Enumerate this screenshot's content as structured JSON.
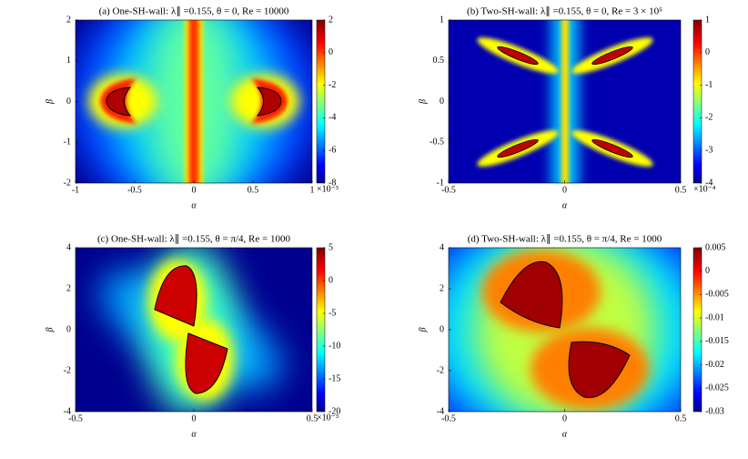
{
  "chart_data": [
    {
      "type": "contour",
      "title": "(a) One-SH-wall: λ∥ =0.155, θ = 0, Re = 10000",
      "x_label": "α",
      "y_label": "β",
      "xlim": [
        -1,
        1
      ],
      "ylim": [
        -2,
        2
      ],
      "xticks": [
        -1,
        -0.5,
        0,
        0.5,
        1
      ],
      "yticks": [
        -2,
        -1,
        0,
        1,
        2
      ],
      "colorbar": {
        "lim": [
          -8,
          2
        ],
        "ticks": [
          2,
          0,
          -2,
          -4,
          -6,
          -8
        ],
        "exponent_label": "×10⁻³"
      }
    },
    {
      "type": "contour",
      "title": "(b) Two-SH-wall: λ∥ =0.155, θ = 0, Re = 3 × 10⁵",
      "x_label": "α",
      "y_label": "β",
      "xlim": [
        -0.5,
        0.5
      ],
      "ylim": [
        -1,
        1
      ],
      "xticks": [
        -0.5,
        0,
        0.5
      ],
      "yticks": [
        -1,
        -0.5,
        0,
        0.5,
        1
      ],
      "colorbar": {
        "lim": [
          -4,
          1
        ],
        "ticks": [
          1,
          0,
          -1,
          -2,
          -3,
          -4
        ],
        "exponent_label": "×10⁻⁴"
      }
    },
    {
      "type": "contour",
      "title": "(c) One-SH-wall: λ∥ =0.155, θ = π/4, Re = 1000",
      "x_label": "α",
      "y_label": "β",
      "xlim": [
        -0.5,
        0.5
      ],
      "ylim": [
        -4,
        4
      ],
      "xticks": [
        -0.5,
        0,
        0.5
      ],
      "yticks": [
        -4,
        -2,
        0,
        2,
        4
      ],
      "colorbar": {
        "lim": [
          -20,
          5
        ],
        "ticks": [
          5,
          0,
          -5,
          -10,
          -15,
          -20
        ],
        "exponent_label": "×10⁻³"
      }
    },
    {
      "type": "contour",
      "title": "(d) Two-SH-wall: λ∥ =0.155, θ = π/4, Re = 1000",
      "x_label": "α",
      "y_label": "β",
      "xlim": [
        -0.5,
        0.5
      ],
      "ylim": [
        -4,
        4
      ],
      "xticks": [
        -0.5,
        0,
        0.5
      ],
      "yticks": [
        -4,
        -2,
        0,
        2,
        4
      ],
      "colorbar": {
        "lim": [
          -0.03,
          0.005
        ],
        "ticks": [
          0.005,
          0,
          -0.005,
          -0.01,
          -0.015,
          -0.02,
          -0.025,
          -0.03
        ]
      }
    }
  ]
}
